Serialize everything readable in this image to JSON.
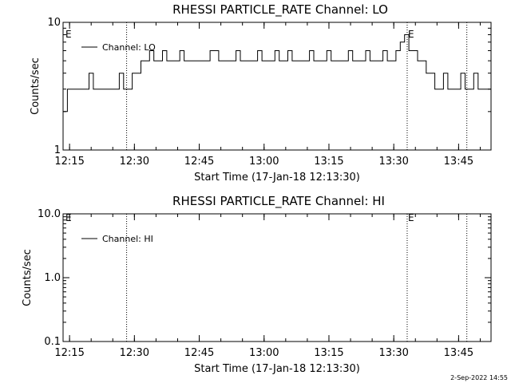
{
  "panels": [
    {
      "title": "RHESSI PARTICLE_RATE Channel: LO",
      "ylabel": "Counts/sec",
      "xlabel": "Start Time (17-Jan-18 12:13:30)",
      "legend": "Channel: LO",
      "xticks": [
        "12:15",
        "12:30",
        "12:45",
        "13:00",
        "13:15",
        "13:30",
        "13:45"
      ],
      "yticks": [
        "1",
        "10"
      ],
      "markers": [
        "E",
        "E"
      ]
    },
    {
      "title": "RHESSI PARTICLE_RATE Channel: HI",
      "ylabel": "Counts/sec",
      "xlabel": "Start Time (17-Jan-18 12:13:30)",
      "legend": "Channel: HI",
      "xticks": [
        "12:15",
        "12:30",
        "12:45",
        "13:00",
        "13:15",
        "13:30",
        "13:45"
      ],
      "yticks": [
        "0.1",
        "1.0",
        "10.0"
      ],
      "markers": [
        "E",
        "E"
      ]
    }
  ],
  "footer": {
    "date": "2-Sep-2022 14:55"
  },
  "chart_data": [
    {
      "type": "line",
      "title": "RHESSI PARTICLE_RATE Channel: LO",
      "xlabel": "Start Time (17-Jan-18 12:13:30)",
      "ylabel": "Counts/sec",
      "yscale": "log",
      "ylim": [
        1,
        10
      ],
      "xlim_minutes_after_start": [
        0,
        99
      ],
      "event_lines_minutes_after_start": [
        14.7,
        79.6,
        93.4
      ],
      "x_minutes_after_start": [
        0,
        1,
        2,
        3,
        4,
        5,
        6,
        7,
        8,
        9,
        10,
        11,
        12,
        13,
        14,
        15,
        16,
        17,
        18,
        19,
        20,
        21,
        22,
        23,
        24,
        25,
        26,
        27,
        28,
        29,
        30,
        31,
        32,
        33,
        34,
        35,
        36,
        37,
        38,
        39,
        40,
        41,
        42,
        43,
        44,
        45,
        46,
        47,
        48,
        49,
        50,
        51,
        52,
        53,
        54,
        55,
        56,
        57,
        58,
        59,
        60,
        61,
        62,
        63,
        64,
        65,
        66,
        67,
        68,
        69,
        70,
        71,
        72,
        73,
        74,
        75,
        76,
        77,
        78,
        79,
        80,
        81,
        82,
        83,
        84,
        85,
        86,
        87,
        88,
        89,
        90,
        91,
        92,
        93,
        94,
        95,
        96,
        97,
        98
      ],
      "series": [
        {
          "name": "Channel: LO",
          "values": [
            2,
            3,
            3,
            3,
            3,
            3,
            4,
            3,
            3,
            3,
            3,
            3,
            3,
            4,
            3,
            3,
            4,
            4,
            5,
            5,
            6,
            5,
            5,
            6,
            5,
            5,
            5,
            6,
            5,
            5,
            5,
            5,
            5,
            5,
            6,
            6,
            5,
            5,
            5,
            5,
            6,
            5,
            5,
            5,
            5,
            6,
            5,
            5,
            5,
            6,
            5,
            5,
            6,
            5,
            5,
            5,
            5,
            6,
            5,
            5,
            5,
            6,
            5,
            5,
            5,
            5,
            6,
            5,
            5,
            5,
            6,
            5,
            5,
            5,
            6,
            5,
            5,
            6,
            7,
            8,
            6,
            6,
            5,
            5,
            4,
            4,
            3,
            3,
            4,
            3,
            3,
            3,
            4,
            3,
            3,
            4,
            3,
            3,
            3
          ]
        }
      ]
    },
    {
      "type": "line",
      "title": "RHESSI PARTICLE_RATE Channel: HI",
      "xlabel": "Start Time (17-Jan-18 12:13:30)",
      "ylabel": "Counts/sec",
      "yscale": "log",
      "ylim": [
        0.1,
        10
      ],
      "xlim_minutes_after_start": [
        0,
        99
      ],
      "event_lines_minutes_after_start": [
        14.7,
        79.6,
        93.4
      ],
      "series": [
        {
          "name": "Channel: HI",
          "values": []
        }
      ]
    }
  ]
}
